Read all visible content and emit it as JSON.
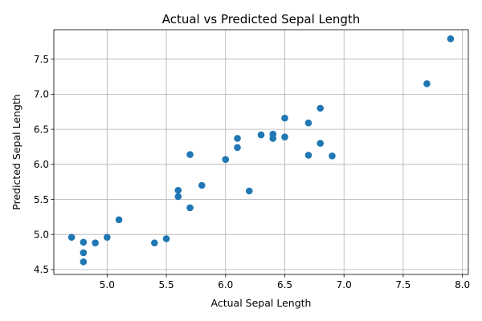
{
  "chart_data": {
    "type": "scatter",
    "title": "Actual vs Predicted Sepal Length",
    "xlabel": "Actual Sepal Length",
    "ylabel": "Predicted Sepal Length",
    "xlim": [
      4.55,
      8.05
    ],
    "ylim": [
      4.43,
      7.92
    ],
    "xticks": [
      "5.0",
      "5.5",
      "6.0",
      "6.5",
      "7.0",
      "7.5",
      "8.0"
    ],
    "yticks": [
      "4.5",
      "5.0",
      "5.5",
      "6.0",
      "6.5",
      "7.0",
      "7.5"
    ],
    "grid": true,
    "marker_color": "#1f77b4",
    "points": [
      {
        "x": 4.7,
        "y": 4.96
      },
      {
        "x": 4.8,
        "y": 4.89
      },
      {
        "x": 4.8,
        "y": 4.74
      },
      {
        "x": 4.8,
        "y": 4.61
      },
      {
        "x": 4.9,
        "y": 4.88
      },
      {
        "x": 5.0,
        "y": 4.96
      },
      {
        "x": 5.1,
        "y": 5.21
      },
      {
        "x": 5.4,
        "y": 4.88
      },
      {
        "x": 5.5,
        "y": 4.94
      },
      {
        "x": 5.6,
        "y": 5.63
      },
      {
        "x": 5.6,
        "y": 5.54
      },
      {
        "x": 5.7,
        "y": 6.14
      },
      {
        "x": 5.7,
        "y": 5.38
      },
      {
        "x": 5.8,
        "y": 5.7
      },
      {
        "x": 6.0,
        "y": 6.07
      },
      {
        "x": 6.1,
        "y": 6.37
      },
      {
        "x": 6.1,
        "y": 6.24
      },
      {
        "x": 6.2,
        "y": 5.62
      },
      {
        "x": 6.3,
        "y": 6.42
      },
      {
        "x": 6.4,
        "y": 6.43
      },
      {
        "x": 6.4,
        "y": 6.37
      },
      {
        "x": 6.5,
        "y": 6.66
      },
      {
        "x": 6.5,
        "y": 6.39
      },
      {
        "x": 6.7,
        "y": 6.59
      },
      {
        "x": 6.7,
        "y": 6.13
      },
      {
        "x": 6.8,
        "y": 6.8
      },
      {
        "x": 6.8,
        "y": 6.3
      },
      {
        "x": 6.9,
        "y": 6.12
      },
      {
        "x": 7.7,
        "y": 7.15
      },
      {
        "x": 7.9,
        "y": 7.79
      }
    ]
  }
}
